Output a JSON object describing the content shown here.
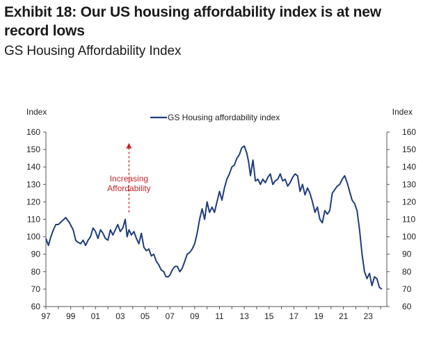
{
  "header": {
    "title": "Exhibit 18: Our US housing affordability index is at new record lows",
    "subtitle": "GS Housing Affordability Index"
  },
  "chart_data": {
    "type": "line",
    "ylabel_left": "Index",
    "ylabel_right": "Index",
    "ylim": [
      60,
      160
    ],
    "yticks": [
      60,
      70,
      80,
      90,
      100,
      110,
      120,
      130,
      140,
      150,
      160
    ],
    "xlim": [
      1997,
      2024.5
    ],
    "xticks": [
      {
        "year": 1997,
        "label": "97"
      },
      {
        "year": 1999,
        "label": "99"
      },
      {
        "year": 2001,
        "label": "01"
      },
      {
        "year": 2003,
        "label": "03"
      },
      {
        "year": 2005,
        "label": "05"
      },
      {
        "year": 2007,
        "label": "07"
      },
      {
        "year": 2009,
        "label": "09"
      },
      {
        "year": 2011,
        "label": "11"
      },
      {
        "year": 2013,
        "label": "13"
      },
      {
        "year": 2015,
        "label": "15"
      },
      {
        "year": 2017,
        "label": "17"
      },
      {
        "year": 2019,
        "label": "19"
      },
      {
        "year": 2021,
        "label": "21"
      },
      {
        "year": 2023,
        "label": "23"
      }
    ],
    "legend": {
      "position": "top-center"
    },
    "grid": false,
    "annotation": {
      "lines": [
        "Increasing",
        "Affordability"
      ],
      "color": "#c0262d",
      "x": 2003.7,
      "y_from": 114,
      "y_to": 153
    },
    "series": [
      {
        "name": "GS Housing affordability index",
        "color": "#1f3d7a",
        "x": [
          1997.0,
          1997.2,
          1997.4,
          1997.6,
          1997.8,
          1998.0,
          1998.3,
          1998.6,
          1998.9,
          1999.2,
          1999.4,
          1999.55,
          1999.8,
          2000.0,
          2000.2,
          2000.4,
          2000.6,
          2000.8,
          2001.0,
          2001.2,
          2001.4,
          2001.6,
          2001.8,
          2002.0,
          2002.2,
          2002.4,
          2002.6,
          2002.8,
          2003.0,
          2003.2,
          2003.4,
          2003.55,
          2003.7,
          2003.9,
          2004.1,
          2004.3,
          2004.5,
          2004.7,
          2004.9,
          2005.1,
          2005.3,
          2005.5,
          2005.7,
          2005.9,
          2006.1,
          2006.3,
          2006.5,
          2006.7,
          2006.85,
          2007.0,
          2007.2,
          2007.4,
          2007.6,
          2007.8,
          2008.0,
          2008.2,
          2008.4,
          2008.6,
          2008.8,
          2009.0,
          2009.2,
          2009.4,
          2009.6,
          2009.8,
          2010.0,
          2010.2,
          2010.4,
          2010.6,
          2010.8,
          2011.0,
          2011.2,
          2011.4,
          2011.6,
          2011.8,
          2012.0,
          2012.2,
          2012.4,
          2012.6,
          2012.8,
          2013.0,
          2013.2,
          2013.35,
          2013.5,
          2013.7,
          2013.9,
          2014.1,
          2014.3,
          2014.5,
          2014.7,
          2014.9,
          2015.1,
          2015.3,
          2015.5,
          2015.7,
          2015.9,
          2016.1,
          2016.3,
          2016.5,
          2016.7,
          2016.9,
          2017.1,
          2017.3,
          2017.5,
          2017.7,
          2017.9,
          2018.1,
          2018.3,
          2018.5,
          2018.7,
          2018.9,
          2019.1,
          2019.3,
          2019.5,
          2019.7,
          2019.9,
          2020.1,
          2020.3,
          2020.5,
          2020.7,
          2020.9,
          2021.1,
          2021.3,
          2021.5,
          2021.7,
          2021.9,
          2022.1,
          2022.3,
          2022.5,
          2022.7,
          2022.9,
          2023.1,
          2023.3,
          2023.5,
          2023.7,
          2023.9,
          2024.1
        ],
        "values": [
          99,
          95,
          100,
          104,
          107,
          107,
          109,
          111,
          108,
          104,
          98,
          97,
          96,
          98,
          95,
          98,
          100,
          105,
          103,
          99,
          104,
          102,
          99,
          98,
          104,
          101,
          104,
          107,
          103,
          105,
          110,
          100,
          104,
          101,
          103,
          99,
          96,
          102,
          94,
          92,
          93,
          89,
          90,
          86,
          84,
          81,
          80,
          77,
          77,
          78,
          81,
          83,
          83,
          80,
          82,
          86,
          90,
          91,
          93,
          96,
          102,
          110,
          116,
          110,
          120,
          114,
          117,
          114,
          120,
          126,
          121,
          128,
          133,
          136,
          140,
          141,
          145,
          147,
          151,
          152,
          148,
          143,
          135,
          144,
          132,
          133,
          130,
          133,
          131,
          134,
          136,
          130,
          132,
          133,
          136,
          132,
          133,
          129,
          131,
          134,
          136,
          135,
          126,
          130,
          124,
          128,
          125,
          120,
          114,
          117,
          110,
          108,
          115,
          113,
          115,
          125,
          127,
          129,
          130,
          133,
          135,
          131,
          126,
          121,
          119,
          115,
          104,
          90,
          80,
          76,
          79,
          72,
          77,
          76,
          71,
          70
        ]
      }
    ]
  }
}
